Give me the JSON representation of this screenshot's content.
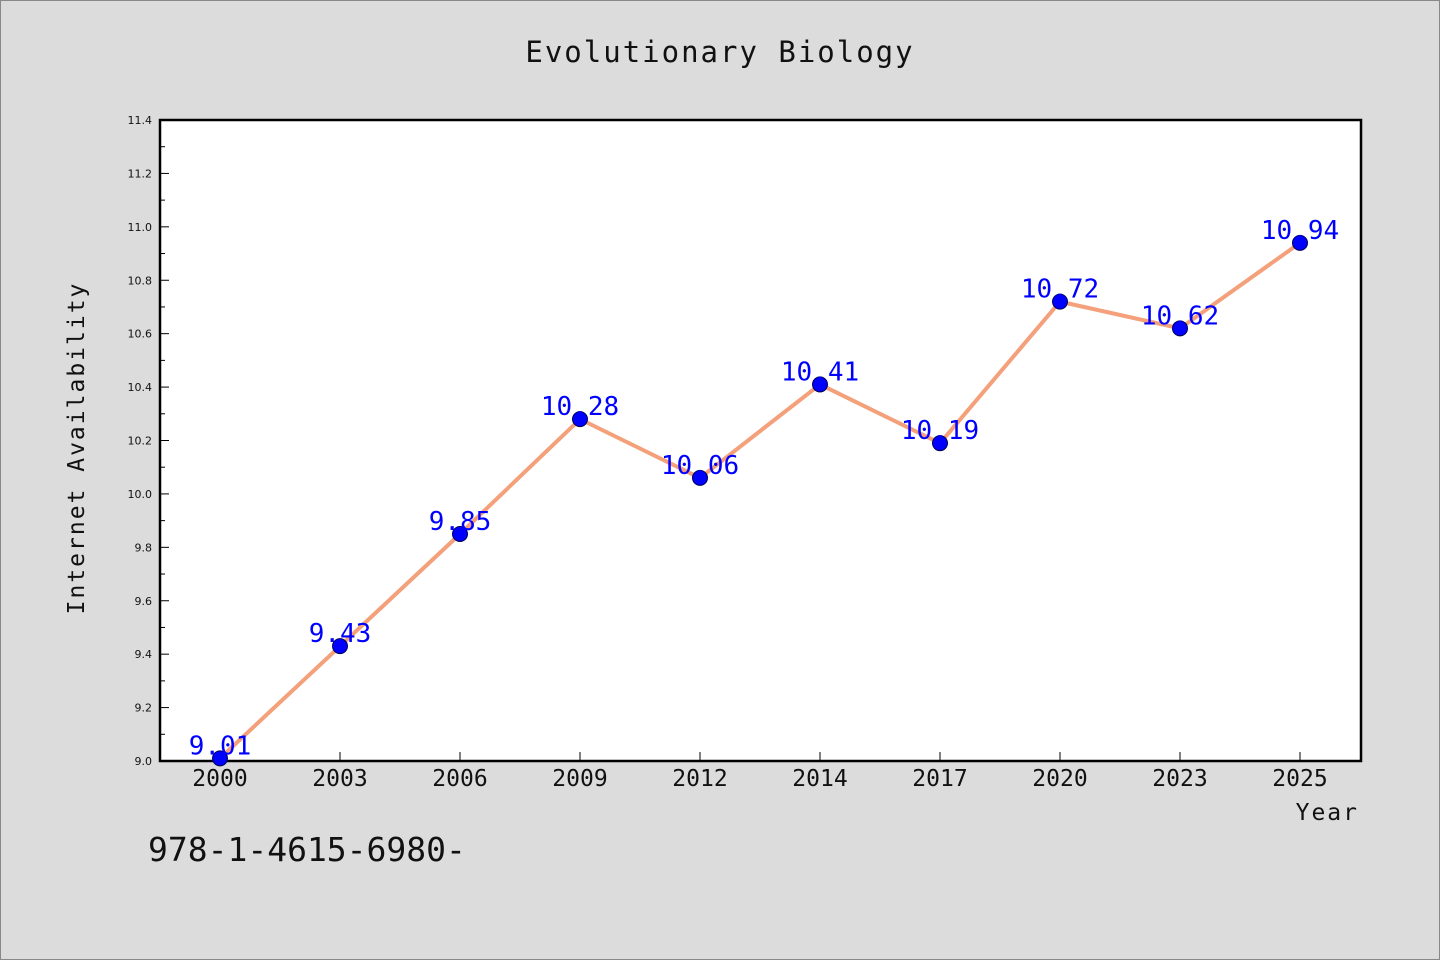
{
  "chart_data": {
    "type": "line",
    "title": "Evolutionary Biology",
    "xlabel": "Year",
    "ylabel": "Internet Availability",
    "categories": [
      "2000",
      "2003",
      "2006",
      "2009",
      "2012",
      "2014",
      "2017",
      "2020",
      "2023",
      "2025"
    ],
    "series": [
      {
        "values": [
          9.01,
          9.43,
          9.85,
          10.28,
          10.06,
          10.41,
          10.19,
          10.72,
          10.62,
          10.94
        ]
      }
    ],
    "ylim": [
      9.0,
      11.4
    ],
    "yticks": [
      "9.0",
      "9.2",
      "9.4",
      "9.6",
      "9.8",
      "10.0",
      "10.2",
      "10.4",
      "10.6",
      "10.8",
      "11.0",
      "11.2",
      "11.4"
    ],
    "data_labels": [
      "9.01",
      "9.43",
      "9.85",
      "10.28",
      "10.06",
      "10.41",
      "10.19",
      "10.72",
      "10.62",
      "10.94"
    ],
    "grid": false,
    "colors": {
      "line": "#f4a07a",
      "marker": "#0000ff",
      "marker_edge": "#000055",
      "data_label": "#0000ff",
      "plot_background": "#ffffff",
      "figure_background": "#dcdcdc"
    }
  },
  "footer": {
    "code": "978-1-4615-6980-"
  }
}
